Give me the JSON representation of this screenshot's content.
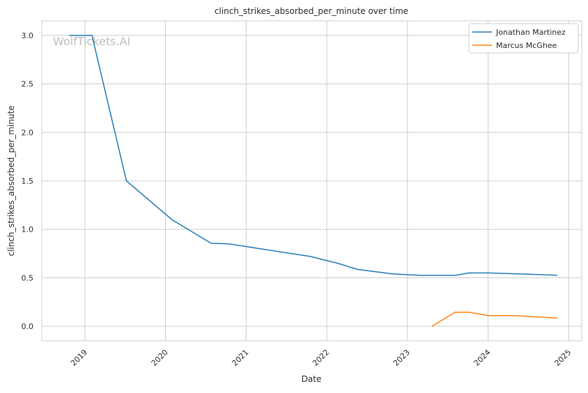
{
  "chart_data": {
    "type": "line",
    "title": "clinch_strikes_absorbed_per_minute over time",
    "xlabel": "Date",
    "ylabel": "clinch_strikes_absorbed_per_minute",
    "xlim": [
      "2018-06-20",
      "2025-03-01"
    ],
    "ylim": [
      -0.15,
      3.15
    ],
    "x_ticks": [
      "2019",
      "2020",
      "2021",
      "2022",
      "2023",
      "2024",
      "2025"
    ],
    "y_ticks": [
      "0.0",
      "0.5",
      "1.0",
      "1.5",
      "2.0",
      "2.5",
      "3.0"
    ],
    "grid": true,
    "legend_position": "top-right",
    "watermark": "WolfTickets.AI",
    "series": [
      {
        "name": "Jonathan Martinez",
        "color": "#1f77b4",
        "points": [
          [
            "2018-10-22",
            3.0
          ],
          [
            "2019-02-02",
            3.0
          ],
          [
            "2019-07-08",
            1.5
          ],
          [
            "2020-01-30",
            1.1
          ],
          [
            "2020-07-25",
            0.857
          ],
          [
            "2020-10-15",
            0.85
          ],
          [
            "2021-03-06",
            0.8
          ],
          [
            "2021-10-20",
            0.72
          ],
          [
            "2022-02-19",
            0.65
          ],
          [
            "2022-05-21",
            0.586
          ],
          [
            "2022-10-29",
            0.54
          ],
          [
            "2023-03-05",
            0.525
          ],
          [
            "2023-08-05",
            0.525
          ],
          [
            "2023-10-07",
            0.55
          ],
          [
            "2024-01-01",
            0.55
          ],
          [
            "2024-05-25",
            0.54
          ],
          [
            "2024-11-10",
            0.526
          ]
        ]
      },
      {
        "name": "Marcus McGhee",
        "color": "#ff7f0e",
        "points": [
          [
            "2023-04-22",
            0.0
          ],
          [
            "2023-08-05",
            0.145
          ],
          [
            "2023-10-07",
            0.145
          ],
          [
            "2024-01-01",
            0.11
          ],
          [
            "2024-05-01",
            0.11
          ],
          [
            "2024-11-10",
            0.085
          ]
        ]
      }
    ]
  }
}
